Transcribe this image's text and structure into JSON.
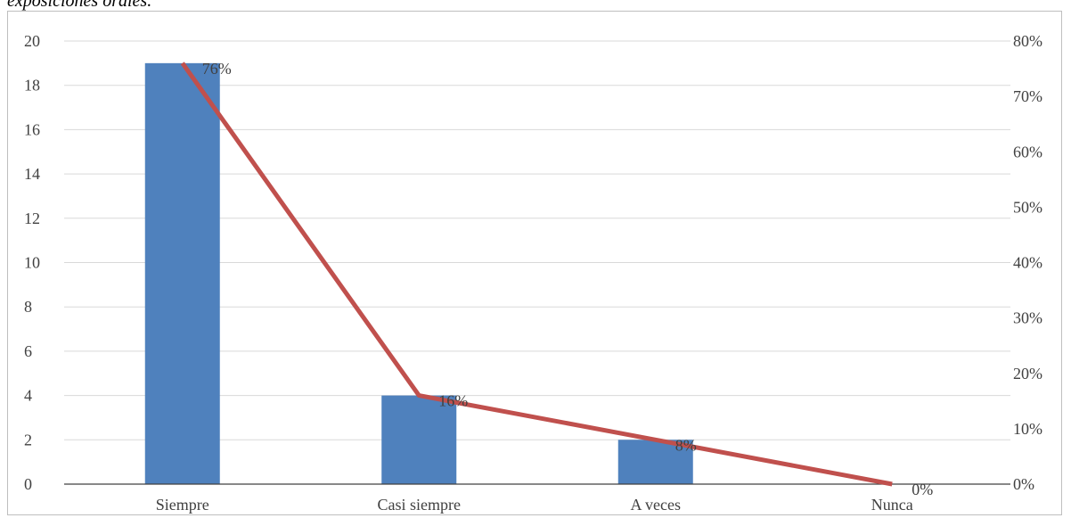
{
  "caption": "exposiciones orales.",
  "chart_data": {
    "type": "bar",
    "categories": [
      "Siempre",
      "Casi siempre",
      "A veces",
      "Nunca"
    ],
    "series": [
      {
        "type": "bar",
        "axis": "left",
        "values": [
          19,
          4,
          2,
          0
        ],
        "color": "#4f81bd"
      },
      {
        "type": "line",
        "axis": "right",
        "values": [
          0.76,
          0.16,
          0.08,
          0.0
        ],
        "labels": [
          "76%",
          "16%",
          "8%",
          "0%"
        ],
        "color": "#c0504d"
      }
    ],
    "ylim_left": [
      0,
      20
    ],
    "yticks_left": [
      "0",
      "2",
      "4",
      "6",
      "8",
      "10",
      "12",
      "14",
      "16",
      "18",
      "20"
    ],
    "ylim_right": [
      0,
      0.8
    ],
    "yticks_right": [
      "0%",
      "10%",
      "20%",
      "30%",
      "40%",
      "50%",
      "60%",
      "70%",
      "80%"
    ],
    "grid": true,
    "title": "",
    "xlabel": "",
    "ylabel": ""
  }
}
